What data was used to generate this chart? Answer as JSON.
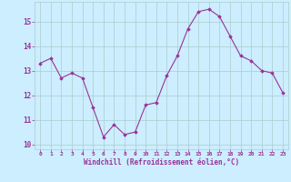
{
  "x": [
    0,
    1,
    2,
    3,
    4,
    5,
    6,
    7,
    8,
    9,
    10,
    11,
    12,
    13,
    14,
    15,
    16,
    17,
    18,
    19,
    20,
    21,
    22,
    23
  ],
  "y": [
    13.3,
    13.5,
    12.7,
    12.9,
    12.7,
    11.5,
    10.3,
    10.8,
    10.4,
    10.5,
    11.6,
    11.7,
    12.8,
    13.6,
    14.7,
    15.4,
    15.5,
    15.2,
    14.4,
    13.6,
    13.4,
    13.0,
    12.9,
    12.1
  ],
  "line_color": "#993399",
  "marker_color": "#993399",
  "bg_color": "#cceeff",
  "grid_color": "#aacccc",
  "tick_color": "#993399",
  "label_color": "#993399",
  "xlabel": "Windchill (Refroidissement éolien,°C)",
  "ylim": [
    9.8,
    15.8
  ],
  "yticks": [
    10,
    11,
    12,
    13,
    14,
    15
  ],
  "xticks": [
    0,
    1,
    2,
    3,
    4,
    5,
    6,
    7,
    8,
    9,
    10,
    11,
    12,
    13,
    14,
    15,
    16,
    17,
    18,
    19,
    20,
    21,
    22,
    23
  ],
  "xtick_labels": [
    "0",
    "1",
    "2",
    "3",
    "4",
    "5",
    "6",
    "7",
    "8",
    "9",
    "10",
    "11",
    "12",
    "13",
    "14",
    "15",
    "16",
    "17",
    "18",
    "19",
    "20",
    "21",
    "22",
    "23"
  ]
}
